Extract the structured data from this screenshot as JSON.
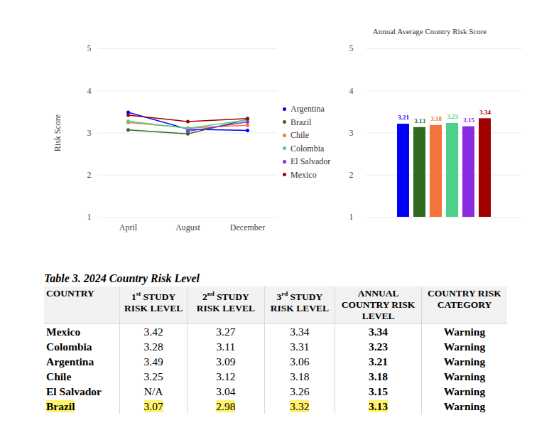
{
  "chart_data": [
    {
      "type": "line",
      "y_label": "Risk Score",
      "categories": [
        "April",
        "August",
        "December"
      ],
      "series": [
        {
          "name": "Argentina",
          "color": "#0000ff",
          "values": [
            3.49,
            3.09,
            3.06
          ]
        },
        {
          "name": "Brazil",
          "color": "#2e6b1f",
          "values": [
            3.07,
            2.98,
            3.32
          ]
        },
        {
          "name": "Chile",
          "color": "#f4733a",
          "values": [
            3.25,
            3.12,
            3.18
          ]
        },
        {
          "name": "Colombia",
          "color": "#4fd08a",
          "values": [
            3.28,
            3.11,
            3.31
          ]
        },
        {
          "name": "El Salvador",
          "color": "#8a2be2",
          "values": [
            null,
            3.04,
            3.26
          ]
        },
        {
          "name": "Mexico",
          "color": "#a00000",
          "values": [
            3.42,
            3.27,
            3.34
          ]
        }
      ],
      "ylim": [
        1,
        5
      ],
      "yticks": [
        1,
        2,
        3,
        4,
        5
      ],
      "grid": true,
      "legend": "right",
      "marker": "circle"
    },
    {
      "type": "bar",
      "title": "Annual Average Country Risk Score",
      "categories": [
        null,
        null,
        null,
        null,
        null,
        null
      ],
      "values": [
        3.21,
        3.13,
        3.18,
        3.23,
        3.15,
        3.34
      ],
      "colors": [
        "#0000ff",
        "#2e6b1f",
        "#f4733a",
        "#4fd08a",
        "#8a2be2",
        "#a00000"
      ],
      "ylim": [
        1,
        5
      ],
      "yticks": [
        1,
        2,
        3,
        4,
        5
      ],
      "grid": true,
      "data_labels": true,
      "tick_labels": "y"
    }
  ],
  "table": {
    "title": "Table 3. 2024 Country Risk Level",
    "header": [
      "COUNTRY",
      "1st STUDY RISK LEVEL",
      "2nd STUDY RISK LEVEL",
      "3rd STUDY RISK LEVEL",
      "ANNUAL COUNTRY RISK LEVEL",
      "COUNTRY RISK CATEGORY"
    ],
    "rows": [
      [
        "Mexico",
        "3.42",
        "3.27",
        "3.34",
        "3.34",
        "Warning"
      ],
      [
        "Colombia",
        "3.28",
        "3.11",
        "3.31",
        "3.23",
        "Warning"
      ],
      [
        "Argentina",
        "3.49",
        "3.09",
        "3.06",
        "3.21",
        "Warning"
      ],
      [
        "Chile",
        "3.25",
        "3.12",
        "3.18",
        "3.18",
        "Warning"
      ],
      [
        "El Salvador",
        "N/A",
        "3.04",
        "3.26",
        "3.15",
        "Warning"
      ],
      [
        "Brazil",
        "3.07",
        "2.98",
        "3.32",
        "3.13",
        "Warning"
      ]
    ],
    "highlight": "Brazil"
  }
}
